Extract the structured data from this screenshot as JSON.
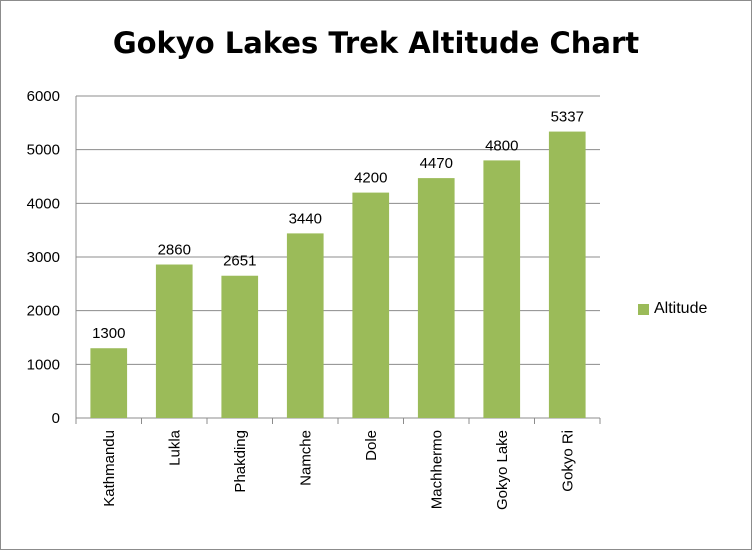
{
  "chart_data": {
    "type": "bar",
    "title": "Gokyo Lakes Trek Altitude Chart",
    "categories": [
      "Kathmandu",
      "Lukla",
      "Phakding",
      "Namche",
      "Dole",
      "Machhermo",
      "Gokyo Lake",
      "Gokyo Ri"
    ],
    "series": [
      {
        "name": "Altitude",
        "values": [
          1300,
          2860,
          2651,
          3440,
          4200,
          4470,
          4800,
          5337
        ],
        "color": "#9bbb59"
      }
    ],
    "ylim": [
      0,
      6000
    ],
    "yticks": [
      "0",
      "1000",
      "2000",
      "3000",
      "4000",
      "5000",
      "6000"
    ],
    "grid": true,
    "legend": "right",
    "data_labels": true
  }
}
